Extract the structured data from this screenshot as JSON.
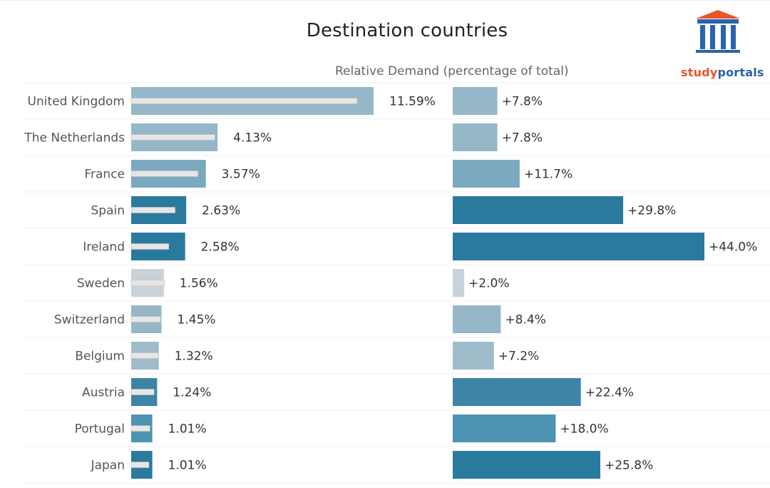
{
  "header": {
    "title": "Destination countries",
    "subtitle": "Relative Demand (percentage of total)"
  },
  "logo": {
    "text_study": "study",
    "text_portals": "portals",
    "icon": "building-columns-icon",
    "colors": {
      "roof": "#e8562a",
      "columns": "#2a62ad"
    }
  },
  "chart_data": {
    "type": "bar",
    "categories": [
      "United Kingdom",
      "The Netherlands",
      "France",
      "Spain",
      "Ireland",
      "Sweden",
      "Switzerland",
      "Belgium",
      "Austria",
      "Portugal",
      "Japan"
    ],
    "series": [
      {
        "values": [
          11.59,
          4.13,
          3.57,
          2.63,
          2.58,
          1.56,
          1.45,
          1.32,
          1.24,
          1.01,
          1.01
        ],
        "labels": [
          "11.59%",
          "4.13%",
          "3.57%",
          "2.63%",
          "2.58%",
          "1.56%",
          "1.45%",
          "1.32%",
          "1.24%",
          "1.01%",
          "1.01%"
        ]
      },
      {
        "values": [
          10.8,
          4.0,
          3.2,
          2.1,
          1.8,
          1.6,
          1.4,
          1.3,
          1.1,
          0.9,
          0.85
        ]
      },
      {
        "values": [
          7.8,
          7.8,
          11.7,
          29.8,
          44.0,
          2.0,
          8.4,
          7.2,
          22.4,
          18.0,
          25.8
        ],
        "labels": [
          "+7.8%",
          "+7.8%",
          "+11.7%",
          "+29.8%",
          "+44.0%",
          "+2.0%",
          "+8.4%",
          "+7.2%",
          "+22.4%",
          "+18.0%",
          "+25.8%"
        ]
      }
    ],
    "colors": [
      "#95b7c8",
      "#95b7c8",
      "#7aa9c0",
      "#2a7a9e",
      "#2a7a9e",
      "#c8d2d8",
      "#95b7c8",
      "#9fbccb",
      "#3d84a6",
      "#4d93b2",
      "#2a7a9e"
    ],
    "inner_bar_color": "#e6e6e6",
    "grid": false
  }
}
